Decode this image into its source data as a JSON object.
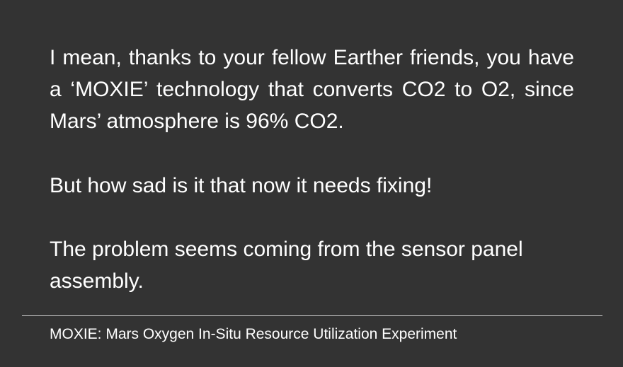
{
  "slide": {
    "background_color": "#333333",
    "text_color": "#ffffff",
    "paragraphs": [
      "I mean, thanks to your fellow Earther friends, you have a ‘MOXIE’ technology that converts CO2 to O2, since Mars’ atmosphere is 96% CO2.",
      "But how sad is it that now it needs fixing!",
      "The problem seems coming from the sensor panel assembly."
    ],
    "footnote": "MOXIE: Mars Oxygen In-Situ Resource Utilization Experiment"
  }
}
